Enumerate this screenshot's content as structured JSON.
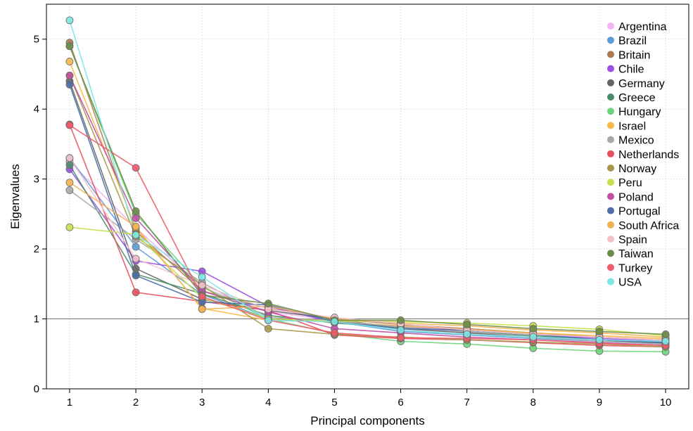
{
  "chart_data": {
    "type": "line",
    "title": "",
    "xlabel": "Principal components",
    "ylabel": "Eigenvalues",
    "x": [
      1,
      2,
      3,
      4,
      5,
      6,
      7,
      8,
      9,
      10
    ],
    "xlim": [
      0.65,
      10.35
    ],
    "ylim": [
      0,
      5.5
    ],
    "xticks": [
      "1",
      "2",
      "3",
      "4",
      "5",
      "6",
      "7",
      "8",
      "9",
      "10"
    ],
    "yticks": [
      "0",
      "1",
      "2",
      "3",
      "4",
      "5"
    ],
    "reference_line": 1,
    "grid": true,
    "legend_position": "top-right",
    "series": [
      {
        "name": "Argentina",
        "color": "#f0b4f5",
        "values": [
          3.25,
          2.3,
          1.45,
          1.1,
          0.98,
          0.88,
          0.8,
          0.74,
          0.7,
          0.66
        ]
      },
      {
        "name": "Brazil",
        "color": "#5b9bd8",
        "values": [
          3.3,
          2.03,
          1.35,
          1.0,
          0.96,
          0.82,
          0.77,
          0.72,
          0.68,
          0.64
        ]
      },
      {
        "name": "Britain",
        "color": "#b07a4e",
        "values": [
          4.95,
          2.25,
          1.4,
          1.15,
          1.0,
          0.92,
          0.86,
          0.8,
          0.74,
          0.7
        ]
      },
      {
        "name": "Chile",
        "color": "#9b4fe3",
        "values": [
          3.14,
          1.83,
          1.68,
          1.18,
          0.95,
          0.9,
          0.84,
          0.78,
          0.72,
          0.68
        ]
      },
      {
        "name": "Germany",
        "color": "#666666",
        "values": [
          4.4,
          1.72,
          1.28,
          1.12,
          1.0,
          0.86,
          0.8,
          0.74,
          0.7,
          0.65
        ]
      },
      {
        "name": "Greece",
        "color": "#4a8c6c",
        "values": [
          3.2,
          1.64,
          1.36,
          1.05,
          0.94,
          0.88,
          0.82,
          0.76,
          0.7,
          0.66
        ]
      },
      {
        "name": "Hungary",
        "color": "#6ed47a",
        "values": [
          4.9,
          2.5,
          1.46,
          1.0,
          0.79,
          0.68,
          0.64,
          0.58,
          0.54,
          0.53
        ]
      },
      {
        "name": "Israel",
        "color": "#f7b84a",
        "values": [
          4.68,
          2.3,
          1.15,
          0.98,
          0.96,
          0.9,
          0.85,
          0.8,
          0.76,
          0.72
        ]
      },
      {
        "name": "Mexico",
        "color": "#a8a8a8",
        "values": [
          2.84,
          2.14,
          1.52,
          1.02,
          0.98,
          0.88,
          0.82,
          0.74,
          0.68,
          0.64
        ]
      },
      {
        "name": "Netherlands",
        "color": "#e8505e",
        "values": [
          3.78,
          1.38,
          1.25,
          1.12,
          0.77,
          0.72,
          0.7,
          0.66,
          0.62,
          0.6
        ]
      },
      {
        "name": "Norway",
        "color": "#a89848",
        "values": [
          4.48,
          2.18,
          1.48,
          0.86,
          0.78,
          0.74,
          0.7,
          0.67,
          0.64,
          0.6
        ]
      },
      {
        "name": "Peru",
        "color": "#c4e04a",
        "values": [
          2.31,
          2.21,
          1.3,
          1.0,
          0.97,
          0.96,
          0.94,
          0.9,
          0.85,
          0.76
        ]
      },
      {
        "name": "Poland",
        "color": "#c14fa6",
        "values": [
          4.48,
          2.44,
          1.4,
          1.1,
          0.86,
          0.8,
          0.74,
          0.7,
          0.66,
          0.62
        ]
      },
      {
        "name": "Portugal",
        "color": "#4a6fa8",
        "values": [
          4.35,
          1.62,
          1.24,
          1.2,
          0.96,
          0.86,
          0.84,
          0.78,
          0.7,
          0.66
        ]
      },
      {
        "name": "South Africa",
        "color": "#f5b050",
        "values": [
          2.95,
          2.32,
          1.14,
          1.18,
          1.0,
          0.94,
          0.9,
          0.84,
          0.8,
          0.74
        ]
      },
      {
        "name": "Spain",
        "color": "#f5c2cc",
        "values": [
          3.3,
          1.86,
          1.48,
          1.14,
          1.02,
          0.93,
          0.84,
          0.78,
          0.74,
          0.7
        ]
      },
      {
        "name": "Taiwan",
        "color": "#6a8c46",
        "values": [
          4.9,
          2.54,
          1.34,
          1.22,
          0.98,
          0.98,
          0.92,
          0.86,
          0.82,
          0.78
        ]
      },
      {
        "name": "Turkey",
        "color": "#f05a6a",
        "values": [
          3.77,
          3.16,
          1.32,
          0.98,
          0.8,
          0.73,
          0.72,
          0.7,
          0.65,
          0.62
        ]
      },
      {
        "name": "USA",
        "color": "#7ae6e6",
        "values": [
          5.27,
          2.2,
          1.6,
          0.98,
          0.96,
          0.84,
          0.78,
          0.74,
          0.7,
          0.68
        ]
      }
    ]
  }
}
